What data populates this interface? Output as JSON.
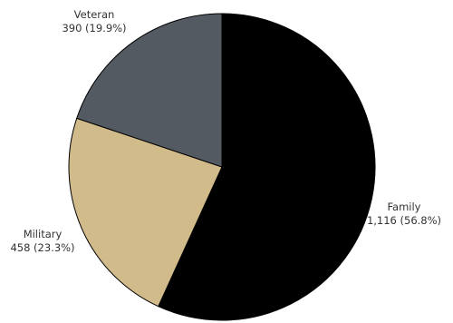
{
  "chart_data": {
    "type": "pie",
    "title": "",
    "legend": "none",
    "start_angle_deg": 0,
    "direction": "clockwise",
    "slices": [
      {
        "name": "Family",
        "value": 1116,
        "value_label": "1,116 (56.8%)",
        "color": "#000000"
      },
      {
        "name": "Military",
        "value": 458,
        "value_label": "458 (23.3%)",
        "color": "#d2bb8b"
      },
      {
        "name": "Veteran",
        "value": 390,
        "value_label": "390 (19.9%)",
        "color": "#545a62"
      }
    ]
  }
}
